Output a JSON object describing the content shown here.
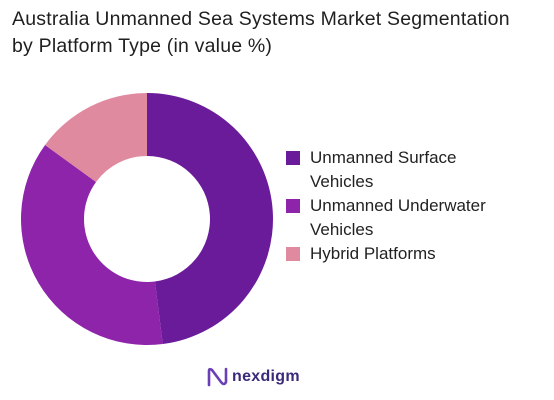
{
  "title_line1": "Australia Unmanned Sea Systems Market Segmentation",
  "title_line2": "by Platform Type (in value %)",
  "brand": {
    "name": "nexdigm",
    "icon": "nexdigm-logo-icon"
  },
  "colors": {
    "surface": "#6a1b9a",
    "underwater": "#8e24aa",
    "hybrid": "#e08aa0",
    "title": "#1f1f1f",
    "brand": "#3b2a7a"
  },
  "chart_data": {
    "type": "pie",
    "variant": "donut",
    "title": "Australia Unmanned Sea Systems Market Segmentation by Platform Type (in value %)",
    "legend_position": "right",
    "categories": [
      "Unmanned Surface Vehicles",
      "Unmanned Underwater Vehicles",
      "Hybrid Platforms"
    ],
    "values": [
      48,
      37,
      15
    ],
    "colors": [
      "#6a1b9a",
      "#8e24aa",
      "#e08aa0"
    ]
  }
}
